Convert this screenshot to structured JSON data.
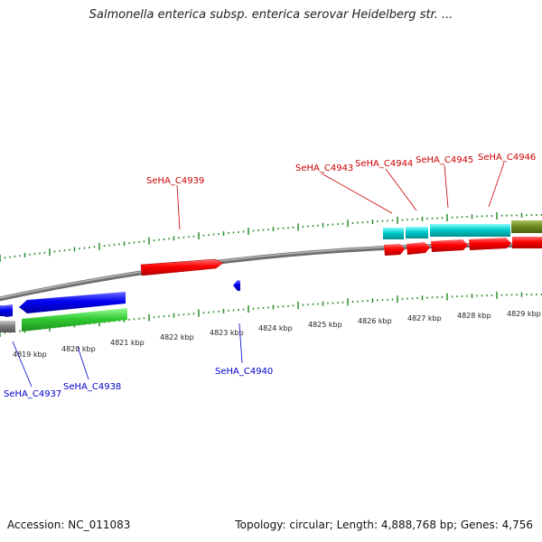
{
  "title": "Salmonella enterica subsp. enterica serovar Heidelberg str. ...",
  "footer": {
    "accession_label": "Accession:",
    "accession": "NC_011083",
    "topology": "Topology: circular; Length: 4,888,768 bp; Genes: 4,756"
  },
  "scale": {
    "ticks": [
      "4819 kbp",
      "4820 kbp",
      "4821 kbp",
      "4822 kbp",
      "4823 kbp",
      "4824 kbp",
      "4825 kbp",
      "4826 kbp",
      "4827 kbp",
      "4828 kbp",
      "4829 kbp"
    ]
  },
  "genes": {
    "forward_labels": [
      "SeHA_C4939",
      "SeHA_C4943",
      "SeHA_C4944",
      "SeHA_C4945",
      "SeHA_C4946"
    ],
    "reverse_labels": [
      "SeHA_C4937",
      "SeHA_C4938",
      "SeHA_C4940"
    ]
  },
  "colors": {
    "forward_label": "#cc0000",
    "reverse_label": "#0000cc",
    "cds_forward": "#ff0000",
    "cds_reverse": "#0000ff",
    "rna_cyan": "#00cccc",
    "gene_green": "#33cc33",
    "gene_olive": "#6e8c1e",
    "gene_gray": "#808080",
    "backbone": "#8c8c8c",
    "tick": "#2a8c2a"
  }
}
